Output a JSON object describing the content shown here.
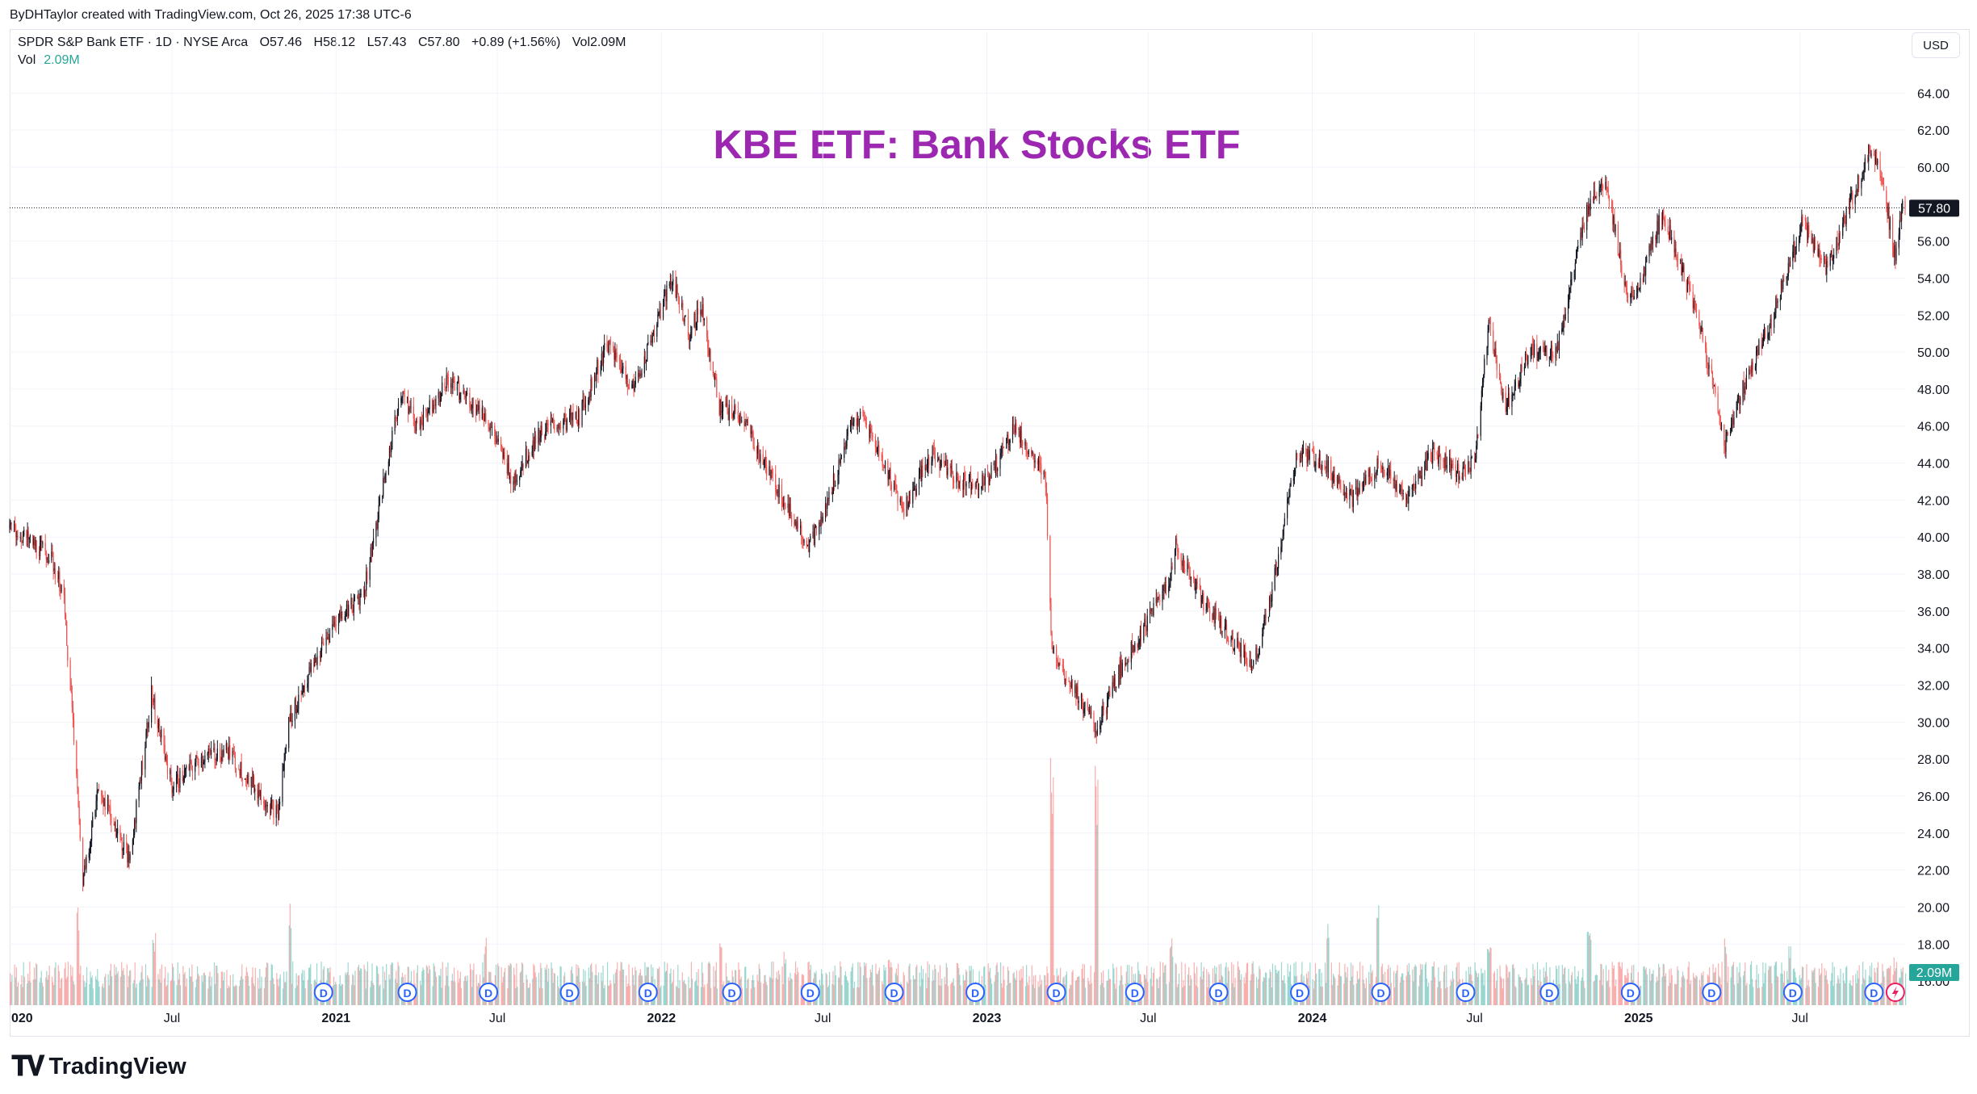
{
  "credit": "ByDHTaylor created with TradingView.com, Oct 26, 2025 17:38 UTC-6",
  "legend": {
    "symbol": "SPDR S&P Bank ETF · 1D · NYSE Arca",
    "open": "O57.46",
    "high": "H58.12",
    "low": "L57.43",
    "close": "C57.80",
    "change": "+0.89 (+1.56%)",
    "volume": "Vol2.09M"
  },
  "vol_label": "Vol",
  "vol_value": "2.09M",
  "currency": "USD",
  "brand": "TradingView",
  "colors": {
    "up": "#26a69a",
    "down": "#ef5350",
    "title": "#9c27b0",
    "badge_price": "#131722",
    "badge_vol": "#26a69a",
    "dividend": "#2962ff"
  },
  "icons": {
    "dividend": "D",
    "earnings": "lightning-icon"
  },
  "chart_data": {
    "type": "candlestick",
    "title": "KBE ETF: Bank Stocks ETF",
    "y_axis": {
      "ticks": [
        "64.00",
        "62.00",
        "60.00",
        "58.00",
        "56.00",
        "54.00",
        "52.00",
        "50.00",
        "48.00",
        "46.00",
        "44.00",
        "42.00",
        "40.00",
        "38.00",
        "36.00",
        "34.00",
        "32.00",
        "30.00",
        "28.00",
        "26.00",
        "24.00",
        "22.00",
        "20.00",
        "18.00",
        "16.00"
      ],
      "ylim": [
        15,
        64.8
      ]
    },
    "x_axis": {
      "ticks": [
        "020",
        "Jul",
        "2021",
        "Jul",
        "2022",
        "Jul",
        "2023",
        "Jul",
        "2024",
        "Jul",
        "2025",
        "Jul"
      ]
    },
    "last_price": "57.80",
    "last_volume": "2.09M",
    "dividend_marker_label": "D",
    "price_path": [
      [
        "2020-01-01",
        40.5
      ],
      [
        "2020-02-15",
        39.0
      ],
      [
        "2020-03-01",
        37.0
      ],
      [
        "2020-03-12",
        30.0
      ],
      [
        "2020-03-23",
        21.5
      ],
      [
        "2020-04-10",
        26.5
      ],
      [
        "2020-05-14",
        22.5
      ],
      [
        "2020-06-08",
        31.5
      ],
      [
        "2020-07-01",
        26.5
      ],
      [
        "2020-08-01",
        28.0
      ],
      [
        "2020-09-01",
        28.5
      ],
      [
        "2020-10-01",
        26.5
      ],
      [
        "2020-10-28",
        25.0
      ],
      [
        "2020-11-09",
        30.0
      ],
      [
        "2020-12-01",
        32.5
      ],
      [
        "2021-01-01",
        35.5
      ],
      [
        "2021-02-01",
        37.0
      ],
      [
        "2021-03-15",
        48.0
      ],
      [
        "2021-04-01",
        46.0
      ],
      [
        "2021-05-07",
        48.5
      ],
      [
        "2021-06-18",
        46.5
      ],
      [
        "2021-07-19",
        43.0
      ],
      [
        "2021-08-15",
        45.5
      ],
      [
        "2021-09-01",
        46.0
      ],
      [
        "2021-10-01",
        46.5
      ],
      [
        "2021-11-01",
        50.5
      ],
      [
        "2021-12-01",
        48.0
      ],
      [
        "2022-01-13",
        54.0
      ],
      [
        "2022-02-01",
        51.0
      ],
      [
        "2022-02-15",
        52.5
      ],
      [
        "2022-03-07",
        47.0
      ],
      [
        "2022-04-01",
        46.5
      ],
      [
        "2022-05-01",
        43.5
      ],
      [
        "2022-06-16",
        39.5
      ],
      [
        "2022-07-01",
        41.0
      ],
      [
        "2022-08-01",
        46.0
      ],
      [
        "2022-08-15",
        46.5
      ],
      [
        "2022-09-30",
        41.5
      ],
      [
        "2022-11-01",
        44.5
      ],
      [
        "2022-12-01",
        43.0
      ],
      [
        "2023-01-01",
        43.0
      ],
      [
        "2023-02-01",
        46.0
      ],
      [
        "2023-03-08",
        43.0
      ],
      [
        "2023-03-15",
        34.0
      ],
      [
        "2023-04-01",
        32.5
      ],
      [
        "2023-05-04",
        29.5
      ],
      [
        "2023-06-01",
        33.0
      ],
      [
        "2023-07-01",
        35.5
      ],
      [
        "2023-07-27",
        38.0
      ],
      [
        "2023-08-01",
        39.5
      ],
      [
        "2023-09-01",
        36.5
      ],
      [
        "2023-10-27",
        33.0
      ],
      [
        "2023-11-15",
        36.5
      ],
      [
        "2023-12-15",
        44.5
      ],
      [
        "2024-01-15",
        44.0
      ],
      [
        "2024-02-15",
        42.0
      ],
      [
        "2024-03-15",
        44.0
      ],
      [
        "2024-04-15",
        42.0
      ],
      [
        "2024-05-15",
        44.5
      ],
      [
        "2024-06-15",
        43.5
      ],
      [
        "2024-07-01",
        44.0
      ],
      [
        "2024-07-17",
        51.5
      ],
      [
        "2024-08-05",
        47.0
      ],
      [
        "2024-09-01",
        50.0
      ],
      [
        "2024-10-01",
        50.0
      ],
      [
        "2024-11-06",
        58.0
      ],
      [
        "2024-11-25",
        59.5
      ],
      [
        "2024-12-20",
        52.5
      ],
      [
        "2025-01-01",
        53.5
      ],
      [
        "2025-01-28",
        57.5
      ],
      [
        "2025-02-15",
        55.0
      ],
      [
        "2025-03-13",
        51.0
      ],
      [
        "2025-04-08",
        45.0
      ],
      [
        "2025-05-01",
        48.5
      ],
      [
        "2025-06-01",
        52.0
      ],
      [
        "2025-07-03",
        57.0
      ],
      [
        "2025-08-01",
        54.5
      ],
      [
        "2025-09-18",
        61.0
      ],
      [
        "2025-10-01",
        59.5
      ],
      [
        "2025-10-16",
        55.0
      ],
      [
        "2025-10-24",
        57.8
      ]
    ],
    "volume_spikes": [
      [
        "2020-03-16",
        7.5
      ],
      [
        "2020-06-11",
        5.5
      ],
      [
        "2020-11-09",
        8.0
      ],
      [
        "2021-03-05",
        4.0
      ],
      [
        "2021-06-18",
        5.0
      ],
      [
        "2021-10-15",
        3.0
      ],
      [
        "2022-03-07",
        6.0
      ],
      [
        "2022-05-20",
        4.0
      ],
      [
        "2022-09-13",
        3.5
      ],
      [
        "2023-03-13",
        19.0
      ],
      [
        "2023-03-14",
        17.0
      ],
      [
        "2023-05-04",
        17.5
      ],
      [
        "2023-07-27",
        5.0
      ],
      [
        "2024-01-19",
        6.0
      ],
      [
        "2024-03-15",
        7.5
      ],
      [
        "2024-07-17",
        5.5
      ],
      [
        "2024-11-06",
        6.0
      ],
      [
        "2025-04-07",
        5.0
      ],
      [
        "2025-06-20",
        4.5
      ],
      [
        "2025-10-16",
        3.5
      ]
    ]
  }
}
